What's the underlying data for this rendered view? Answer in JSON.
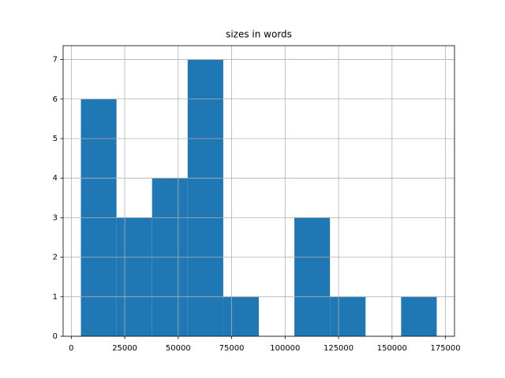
{
  "chart_data": {
    "type": "histogram",
    "title": "sizes in words",
    "bins": [
      4500,
      21140,
      37780,
      54420,
      71060,
      87700,
      104340,
      120980,
      137620,
      154260,
      170900
    ],
    "values": [
      6,
      3,
      4,
      7,
      1,
      0,
      3,
      1,
      0,
      1
    ],
    "color": "#1f77b4",
    "xlim": [
      -3820,
      179220
    ],
    "xticks": [
      0,
      25000,
      50000,
      75000,
      100000,
      125000,
      150000,
      175000
    ],
    "ylim": [
      0,
      7.35
    ],
    "yticks": [
      0,
      1,
      2,
      3,
      4,
      5,
      6,
      7
    ],
    "grid": true
  }
}
